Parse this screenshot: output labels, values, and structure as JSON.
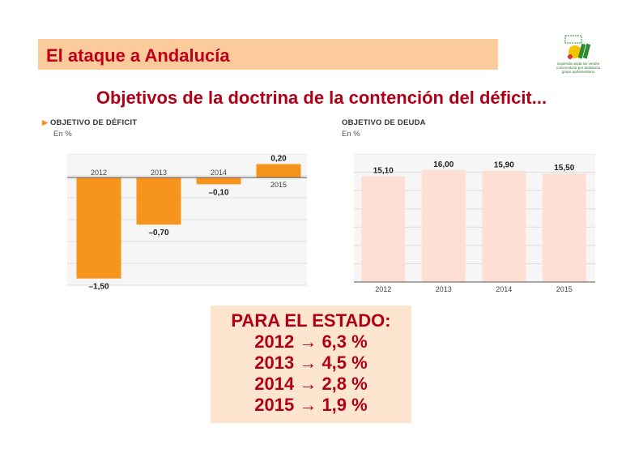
{
  "header": {
    "title": "El ataque a Andalucía"
  },
  "logo": {
    "name": "logo-icon",
    "text_lines": [
      "izquierda unida los verdes",
      "convocatoria por andalucía",
      "grupo parlamentario"
    ],
    "colors": {
      "green": "#2e8b2e",
      "yellow": "#f2c500",
      "red": "#e03030"
    }
  },
  "subtitle": "Objetivos de la doctrina de la contención del déficit...",
  "chart_data": [
    {
      "type": "bar",
      "title": "OBJETIVO DE DÉFICIT",
      "unit_label": "En %",
      "categories": [
        "2012",
        "2013",
        "2014",
        "2015"
      ],
      "values": [
        -1.5,
        -0.7,
        -0.1,
        0.2
      ],
      "value_labels": [
        "–1,50",
        "–0,70",
        "–0,10",
        "0,20"
      ],
      "ylim": [
        -1.6,
        0.35
      ],
      "bar_color": "#f7941d",
      "grid": true
    },
    {
      "type": "bar",
      "title": "OBJETIVO DE DEUDA",
      "unit_label": "En %",
      "categories": [
        "2012",
        "2013",
        "2014",
        "2015"
      ],
      "values": [
        15.1,
        16.0,
        15.9,
        15.5
      ],
      "value_labels": [
        "15,10",
        "16,00",
        "15,90",
        "15,50"
      ],
      "ylim": [
        0,
        18.3
      ],
      "bar_color": "#fde0d3",
      "grid": true
    }
  ],
  "summary": {
    "heading": "PARA EL ESTADO:",
    "lines": [
      "2012 → 6,3 %",
      "2013 → 4,5 %",
      "2014 → 2,8 %",
      "2015 → 1,9 %"
    ]
  },
  "colors": {
    "accent": "#c0001a",
    "banner": "#fbcb9b",
    "summary_bg": "#fde5cf"
  }
}
